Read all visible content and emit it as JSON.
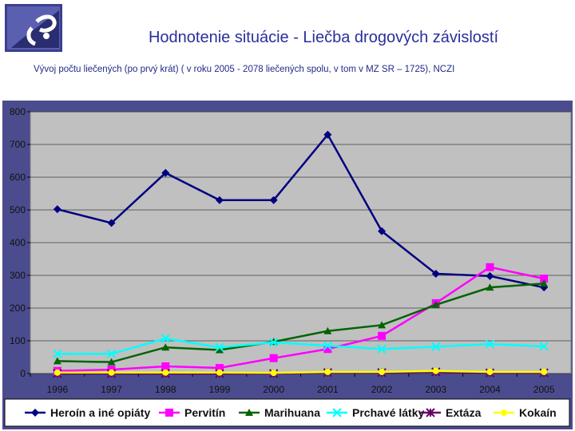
{
  "slide": {
    "title": "Hodnotenie situácie  - Liečba drogových závislostí",
    "subtitle": "Vývoj počtu liečených (po prvý krát)   ( v roku 2005  - 2078 liečených  spolu,  v tom v MZ SR – 1725), NCZI"
  },
  "colors": {
    "plot_bg": "#c0c0c0",
    "frame_bg": "#4b4c8e",
    "legend_bg": "#ffffff",
    "title": "#2a2f9c"
  },
  "chart_data": {
    "type": "line",
    "title": "",
    "xlabel": "",
    "ylabel": "",
    "ylim": [
      0,
      800
    ],
    "yticks": [
      0,
      100,
      200,
      300,
      400,
      500,
      600,
      700,
      800
    ],
    "grid": true,
    "legend_position": "bottom",
    "categories": [
      "1996",
      "1997",
      "1998",
      "1999",
      "2000",
      "2001",
      "2002",
      "2003",
      "2004",
      "2005"
    ],
    "series": [
      {
        "name": "Heroín a iné opiáty",
        "color": "#000080",
        "marker": "diamond",
        "values": [
          502,
          460,
          613,
          530,
          530,
          730,
          435,
          305,
          298,
          263
        ]
      },
      {
        "name": "Pervitín",
        "color": "#ff00ff",
        "marker": "square",
        "values": [
          8,
          12,
          22,
          17,
          47,
          75,
          115,
          215,
          325,
          290
        ]
      },
      {
        "name": "Marihuana",
        "color": "#006400",
        "marker": "triangle",
        "values": [
          38,
          35,
          80,
          72,
          97,
          130,
          148,
          210,
          263,
          275
        ]
      },
      {
        "name": "Prchavé látky",
        "color": "#00ffff",
        "marker": "x",
        "values": [
          60,
          60,
          107,
          80,
          95,
          85,
          75,
          82,
          90,
          83
        ]
      },
      {
        "name": "Extáza",
        "color": "#660066",
        "marker": "star",
        "values": [
          0,
          0,
          0,
          0,
          0,
          3,
          3,
          5,
          2,
          2
        ]
      },
      {
        "name": "Kokaín",
        "color": "#ffff00",
        "marker": "circle",
        "values": [
          3,
          3,
          3,
          3,
          2,
          5,
          5,
          8,
          5,
          5
        ]
      }
    ]
  }
}
